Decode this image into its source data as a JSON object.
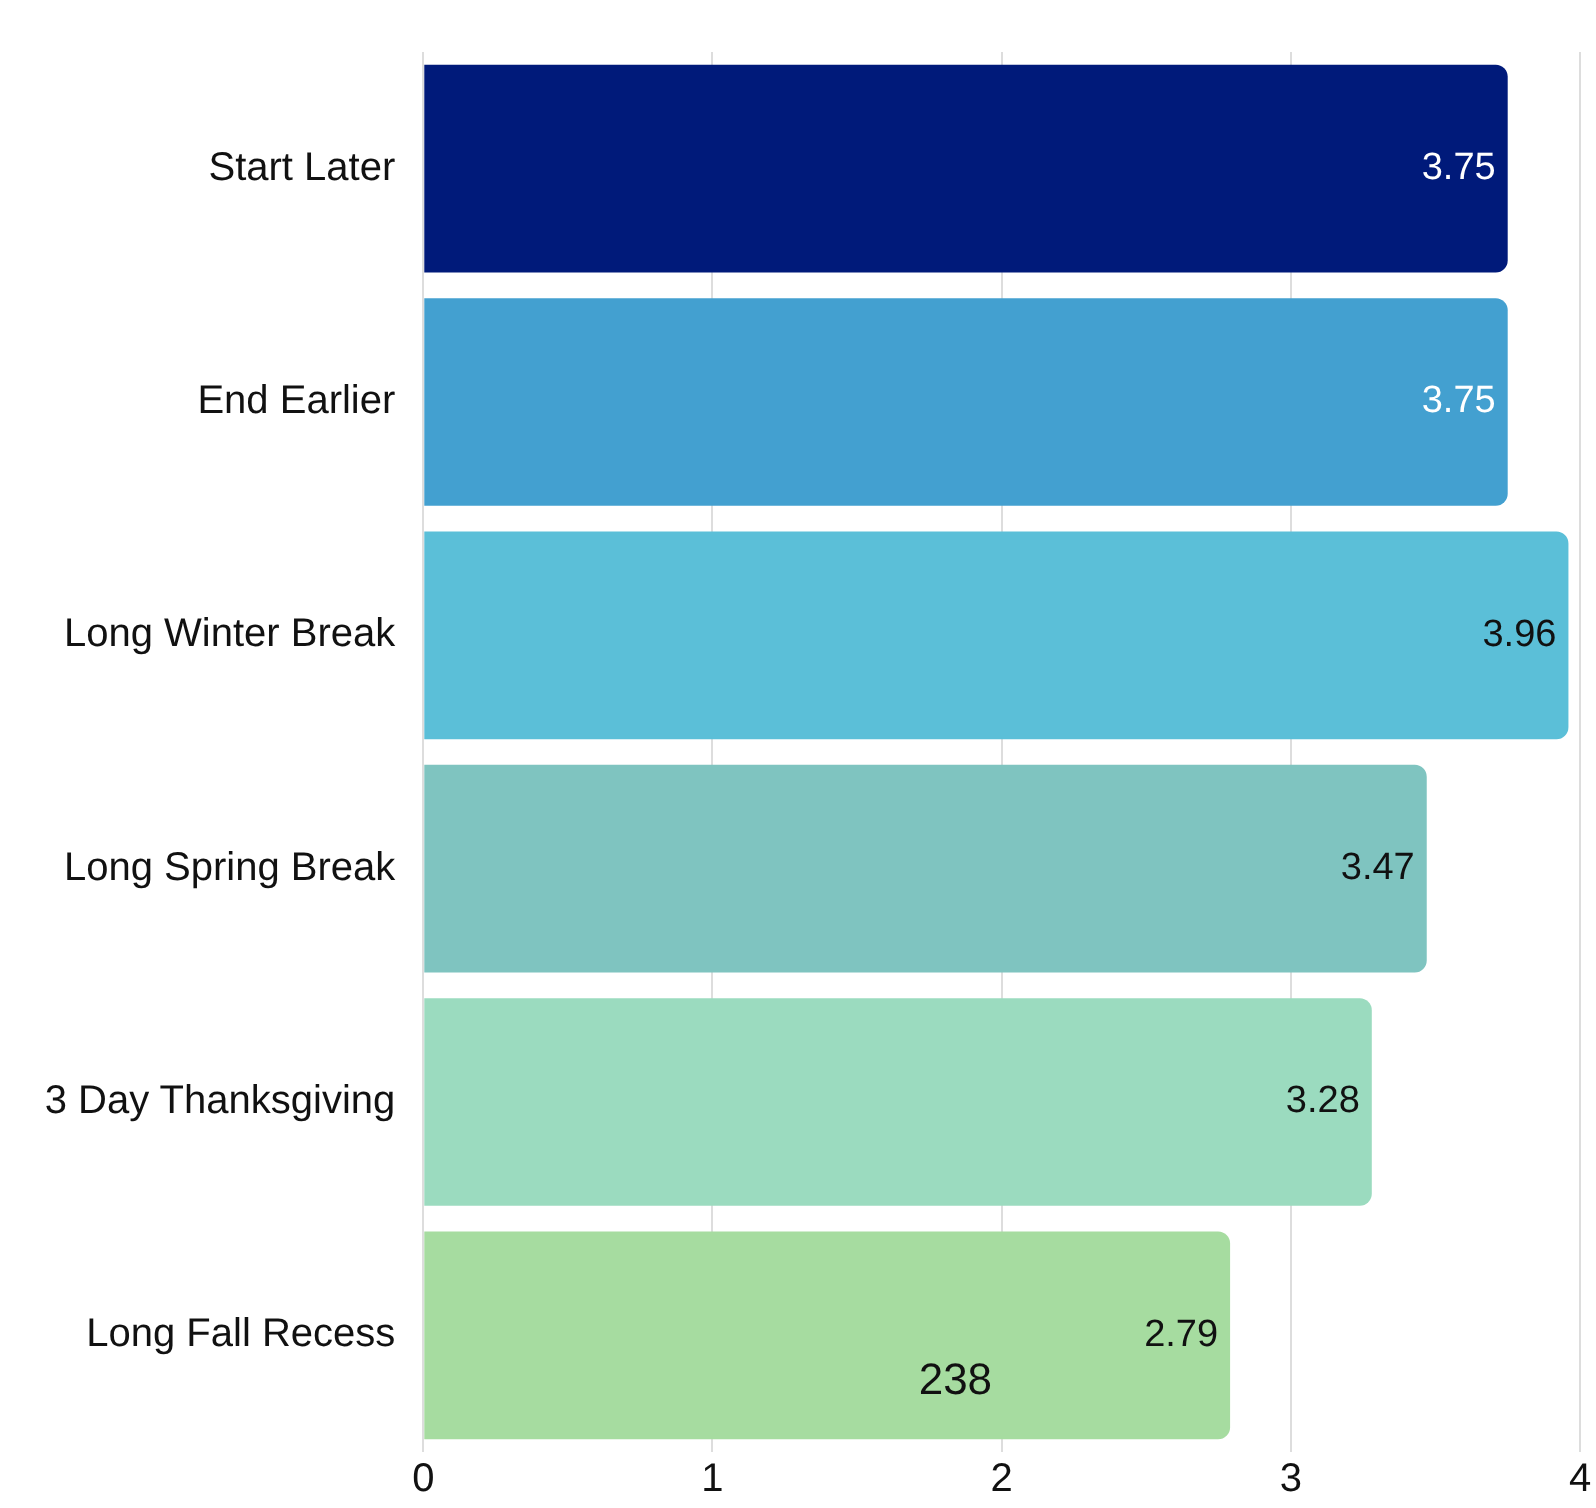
{
  "chart_data": {
    "type": "bar",
    "orientation": "horizontal",
    "categories": [
      "Start Later",
      "End Earlier",
      "Long Winter Break",
      "Long Spring Break",
      "3 Day Thanksgiving",
      "Long Fall Recess"
    ],
    "values": [
      3.75,
      3.75,
      3.96,
      3.47,
      3.28,
      2.79
    ],
    "colors": [
      "#001a7a",
      "#43a0d0",
      "#5bbfd8",
      "#7fc4c0",
      "#9bdbbf",
      "#a6dca0"
    ],
    "xlim": [
      0,
      4
    ],
    "xticks": [
      0,
      1,
      2,
      3,
      4
    ],
    "grid": "x",
    "data_labels": true,
    "legend": false,
    "annotations": [
      "238"
    ]
  }
}
